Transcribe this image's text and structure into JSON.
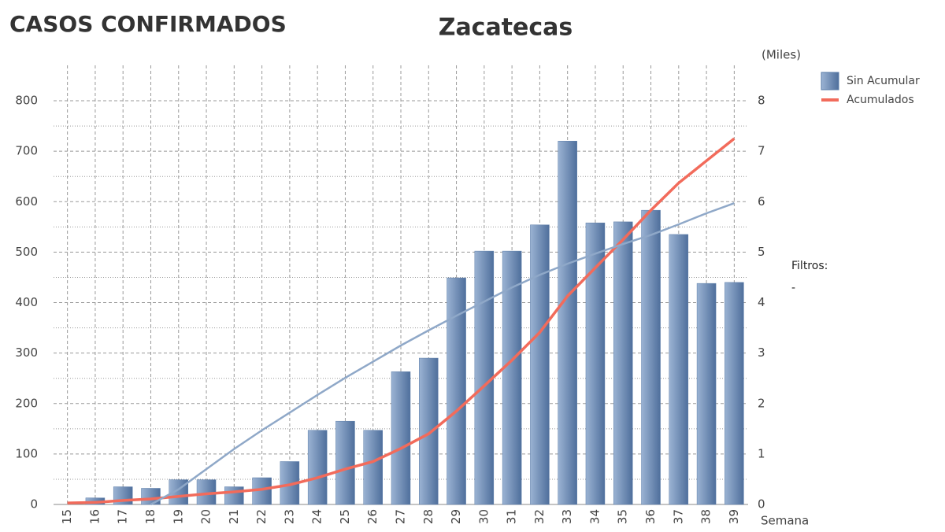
{
  "header": "CASOS CONFIRMADOS",
  "chart_data": {
    "type": "bar",
    "title": "Zacatecas",
    "x_label": "Semana",
    "y2_label": "(Miles)",
    "categories": [
      "15",
      "16",
      "17",
      "18",
      "19",
      "20",
      "21",
      "22",
      "23",
      "24",
      "25",
      "26",
      "27",
      "28",
      "29",
      "30",
      "31",
      "32",
      "33",
      "34",
      "35",
      "36",
      "37",
      "38",
      "39"
    ],
    "series": [
      {
        "name": "Sin Acumular",
        "type": "bar",
        "color": "#5a7ca8",
        "values": [
          0,
          13,
          35,
          32,
          49,
          49,
          35,
          53,
          85,
          147,
          165,
          147,
          263,
          290,
          449,
          502,
          502,
          554,
          720,
          558,
          560,
          583,
          535,
          438,
          440
        ]
      },
      {
        "name": "Acumulados",
        "type": "line",
        "axis": "y2",
        "color": "#f26b5b",
        "values": [
          0.03,
          0.04,
          0.08,
          0.11,
          0.16,
          0.21,
          0.25,
          0.3,
          0.39,
          0.53,
          0.7,
          0.85,
          1.11,
          1.4,
          1.85,
          2.35,
          2.86,
          3.41,
          4.13,
          4.69,
          5.25,
          5.83,
          6.37,
          6.81,
          7.25
        ]
      },
      {
        "type": "line",
        "color": "#8fa8c8",
        "values": [
          null,
          null,
          null,
          0,
          30,
          70,
          110,
          147,
          182,
          217,
          251,
          283,
          315,
          345,
          374,
          402,
          430,
          455,
          477,
          497,
          516,
          534,
          555,
          577,
          597
        ]
      }
    ],
    "ylim": [
      0,
      800
    ],
    "yticks": [
      0,
      100,
      200,
      300,
      400,
      500,
      600,
      700,
      800
    ],
    "y2lim": [
      0,
      8
    ],
    "y2ticks": [
      0,
      1,
      2,
      3,
      4,
      5,
      6,
      7,
      8
    ],
    "grid": true,
    "legend": "top-right"
  },
  "filters": {
    "label": "Filtros:",
    "value": "-"
  }
}
